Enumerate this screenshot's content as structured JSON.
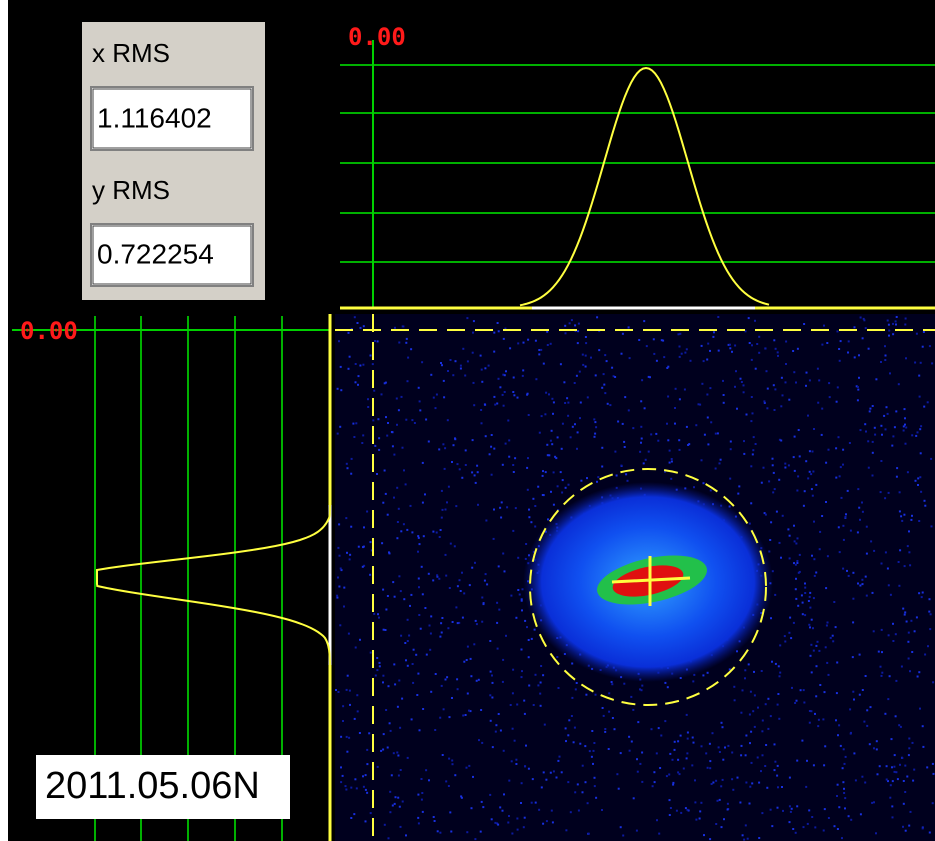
{
  "panel": {
    "x_label": "x RMS",
    "x_value": "1.116402",
    "y_label": "y RMS",
    "y_value": "0.722254"
  },
  "top_profile": {
    "scale_label": "0.00"
  },
  "left_profile": {
    "scale_label": "0.00"
  },
  "image": {
    "stamp": "2011.05.06N"
  }
}
